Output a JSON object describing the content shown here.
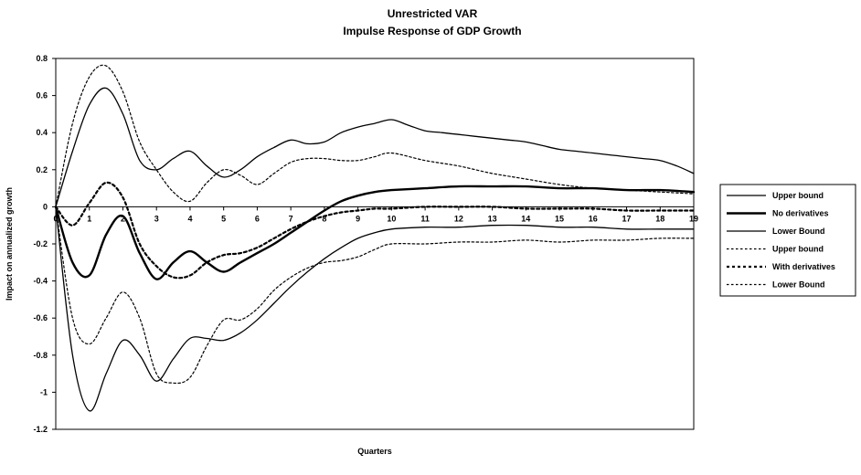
{
  "chart_data": {
    "type": "line",
    "title": "Unrestricted VAR",
    "subtitle": "Impulse Response of GDP Growth",
    "xlabel": "Quarters",
    "ylabel": "Impact on annualized growth",
    "ylim": [
      -1.2,
      0.8
    ],
    "xlim": [
      0,
      19
    ],
    "y_ticks": [
      0.8,
      0.6,
      0.4,
      0.2,
      0,
      -0.2,
      -0.4,
      -0.6,
      -0.8,
      -1,
      -1.2
    ],
    "y_tick_labels": [
      "0.8",
      "0.6",
      "0.4",
      "0.2",
      "0",
      "-0.2",
      "-0.4",
      "-0.6",
      "-0.8",
      "-1",
      "-1.2"
    ],
    "x_ticks": [
      0,
      1,
      2,
      3,
      4,
      5,
      6,
      7,
      8,
      9,
      10,
      11,
      12,
      13,
      14,
      15,
      16,
      17,
      18,
      19
    ],
    "x_tick_labels": [
      "0",
      "1",
      "2",
      "3",
      "4",
      "5",
      "6",
      "7",
      "8",
      "9",
      "10",
      "11",
      "12",
      "13",
      "14",
      "15",
      "16",
      "17",
      "18",
      "19"
    ],
    "legend_position": "right",
    "grid": false,
    "series": [
      {
        "name": "Upper bound",
        "style": "solid-thin",
        "x": [
          0,
          0.5,
          1,
          1.5,
          2,
          2.5,
          3,
          3.5,
          4,
          4.5,
          5,
          5.5,
          6,
          6.5,
          7,
          7.5,
          8,
          8.5,
          9,
          9.5,
          10,
          10.5,
          11,
          11.5,
          12,
          12.5,
          13,
          13.5,
          14,
          14.5,
          15,
          15.5,
          16,
          16.5,
          17,
          17.5,
          18,
          18.5,
          19
        ],
        "values": [
          0,
          0.3,
          0.55,
          0.64,
          0.5,
          0.25,
          0.2,
          0.26,
          0.3,
          0.22,
          0.16,
          0.2,
          0.27,
          0.32,
          0.36,
          0.34,
          0.35,
          0.4,
          0.43,
          0.45,
          0.47,
          0.44,
          0.41,
          0.4,
          0.39,
          0.38,
          0.37,
          0.36,
          0.35,
          0.33,
          0.31,
          0.3,
          0.29,
          0.28,
          0.27,
          0.26,
          0.25,
          0.22,
          0.18
        ]
      },
      {
        "name": "No derivatives",
        "style": "solid-thick",
        "x": [
          0,
          0.5,
          1,
          1.5,
          2,
          2.5,
          3,
          3.5,
          4,
          4.5,
          5,
          5.5,
          6,
          6.5,
          7,
          7.5,
          8,
          8.5,
          9,
          9.5,
          10,
          11,
          12,
          13,
          14,
          15,
          16,
          17,
          18,
          19
        ],
        "values": [
          0,
          -0.3,
          -0.37,
          -0.15,
          -0.05,
          -0.25,
          -0.39,
          -0.3,
          -0.24,
          -0.3,
          -0.35,
          -0.3,
          -0.25,
          -0.2,
          -0.14,
          -0.08,
          -0.02,
          0.03,
          0.06,
          0.08,
          0.09,
          0.1,
          0.11,
          0.11,
          0.11,
          0.1,
          0.1,
          0.09,
          0.09,
          0.08
        ]
      },
      {
        "name": "Lower Bound",
        "style": "solid-thin",
        "x": [
          0,
          0.5,
          1,
          1.5,
          2,
          2.5,
          3,
          3.5,
          4,
          4.5,
          5,
          5.5,
          6,
          6.5,
          7,
          7.5,
          8,
          8.5,
          9,
          9.5,
          10,
          11,
          12,
          13,
          14,
          15,
          16,
          17,
          18,
          19
        ],
        "values": [
          0,
          -0.8,
          -1.1,
          -0.9,
          -0.72,
          -0.8,
          -0.94,
          -0.82,
          -0.71,
          -0.71,
          -0.72,
          -0.68,
          -0.61,
          -0.52,
          -0.43,
          -0.35,
          -0.28,
          -0.22,
          -0.17,
          -0.14,
          -0.12,
          -0.11,
          -0.11,
          -0.1,
          -0.1,
          -0.11,
          -0.11,
          -0.12,
          -0.12,
          -0.12
        ]
      },
      {
        "name": "Upper bound",
        "style": "dotted-thin",
        "x": [
          0,
          0.5,
          1,
          1.5,
          2,
          2.5,
          3,
          3.5,
          4,
          4.5,
          5,
          5.5,
          6,
          6.5,
          7,
          7.5,
          8,
          8.5,
          9,
          9.5,
          10,
          11,
          12,
          13,
          14,
          15,
          16,
          17,
          18,
          19
        ],
        "values": [
          0,
          0.45,
          0.7,
          0.76,
          0.62,
          0.35,
          0.2,
          0.08,
          0.03,
          0.13,
          0.2,
          0.17,
          0.12,
          0.18,
          0.24,
          0.26,
          0.26,
          0.25,
          0.25,
          0.27,
          0.29,
          0.25,
          0.22,
          0.18,
          0.15,
          0.12,
          0.1,
          0.09,
          0.08,
          0.07
        ]
      },
      {
        "name": "With derivatives",
        "style": "dotted-thick",
        "x": [
          0,
          0.5,
          1,
          1.5,
          2,
          2.5,
          3,
          3.5,
          4,
          4.5,
          5,
          5.5,
          6,
          6.5,
          7,
          7.5,
          8,
          8.5,
          9,
          9.5,
          10,
          11,
          12,
          13,
          14,
          15,
          16,
          17,
          18,
          19
        ],
        "values": [
          0,
          -0.1,
          0.02,
          0.13,
          0.05,
          -0.2,
          -0.32,
          -0.38,
          -0.37,
          -0.3,
          -0.26,
          -0.25,
          -0.22,
          -0.17,
          -0.12,
          -0.08,
          -0.05,
          -0.03,
          -0.02,
          -0.01,
          -0.01,
          0,
          0,
          0,
          -0.01,
          -0.01,
          -0.01,
          -0.02,
          -0.02,
          -0.02
        ]
      },
      {
        "name": "Lower Bound",
        "style": "dotted-thin",
        "x": [
          0,
          0.5,
          1,
          1.5,
          2,
          2.5,
          3,
          3.5,
          4,
          4.5,
          5,
          5.5,
          6,
          6.5,
          7,
          7.5,
          8,
          8.5,
          9,
          9.5,
          10,
          11,
          12,
          13,
          14,
          15,
          16,
          17,
          18,
          19
        ],
        "values": [
          0,
          -0.6,
          -0.74,
          -0.6,
          -0.46,
          -0.6,
          -0.9,
          -0.95,
          -0.92,
          -0.75,
          -0.61,
          -0.61,
          -0.55,
          -0.45,
          -0.38,
          -0.33,
          -0.3,
          -0.29,
          -0.27,
          -0.23,
          -0.2,
          -0.2,
          -0.19,
          -0.19,
          -0.18,
          -0.19,
          -0.18,
          -0.18,
          -0.17,
          -0.17
        ]
      }
    ]
  }
}
